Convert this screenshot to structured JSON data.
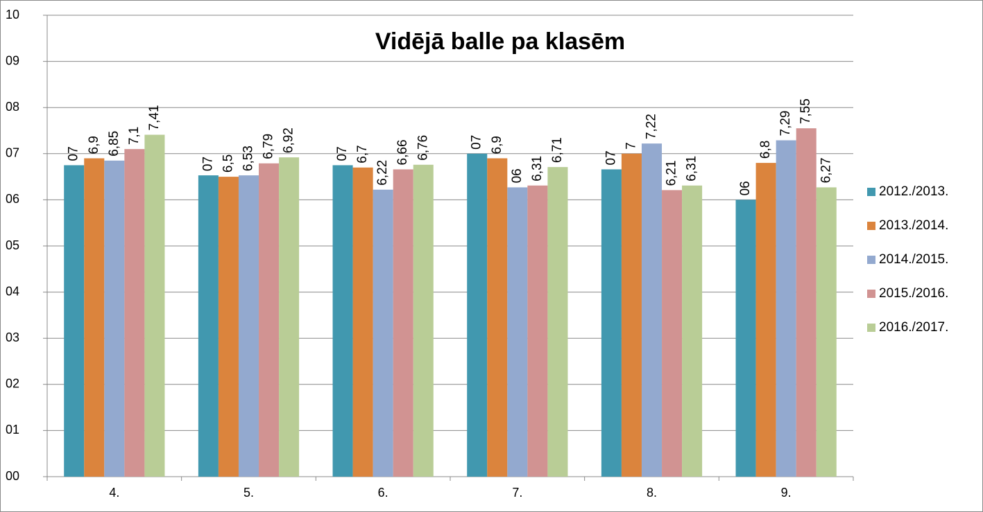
{
  "chart_data": {
    "type": "bar",
    "title": "Vidējā balle pa klasēm",
    "categories": [
      "4.",
      "5.",
      "6.",
      "7.",
      "8.",
      "9."
    ],
    "series": [
      {
        "name": "2012./2013.",
        "color": "#4198af",
        "label_color": "#4a7ebb",
        "values": [
          6.75,
          6.53,
          6.75,
          7,
          6.66,
          6
        ],
        "value_labels": [
          "07",
          "07",
          "07",
          "07",
          "07",
          "06"
        ]
      },
      {
        "name": "2013./2014.",
        "color": "#db843d",
        "label_color": "#e46c0a",
        "values": [
          6.9,
          6.5,
          6.7,
          6.9,
          7,
          6.8
        ],
        "value_labels": [
          "6,9",
          "6,5",
          "6,7",
          "6,9",
          "7",
          "6,8"
        ]
      },
      {
        "name": "2014./2015.",
        "color": "#93a9cf",
        "label_color": "#c3bdd8",
        "values": [
          6.85,
          6.53,
          6.22,
          6.27,
          7.22,
          7.29
        ],
        "value_labels": [
          "6,85",
          "6,53",
          "6,22",
          "06",
          "7,22",
          "7,29"
        ]
      },
      {
        "name": "2015./2016.",
        "color": "#d19392",
        "label_color": "#953735",
        "values": [
          7.1,
          6.79,
          6.66,
          6.31,
          6.21,
          7.55
        ],
        "value_labels": [
          "7,1",
          "6,79",
          "6,66",
          "6,31",
          "6,21",
          "7,55"
        ]
      },
      {
        "name": "2016./2017.",
        "color": "#b9cd96",
        "label_color": "#92d050",
        "values": [
          7.41,
          6.92,
          6.76,
          6.71,
          6.31,
          6.27
        ],
        "value_labels": [
          "7,41",
          "6,92",
          "6,76",
          "6,71",
          "6,31",
          "6,27"
        ]
      }
    ],
    "ylim": [
      0,
      10
    ],
    "yticks": [
      {
        "value": 0,
        "label": "00"
      },
      {
        "value": 1,
        "label": "01"
      },
      {
        "value": 2,
        "label": "02"
      },
      {
        "value": 3,
        "label": "03"
      },
      {
        "value": 4,
        "label": "04"
      },
      {
        "value": 5,
        "label": "05"
      },
      {
        "value": 6,
        "label": "06"
      },
      {
        "value": 7,
        "label": "07"
      },
      {
        "value": 8,
        "label": "08"
      },
      {
        "value": 9,
        "label": "09"
      },
      10
    ],
    "grid": true,
    "legend": "right"
  }
}
